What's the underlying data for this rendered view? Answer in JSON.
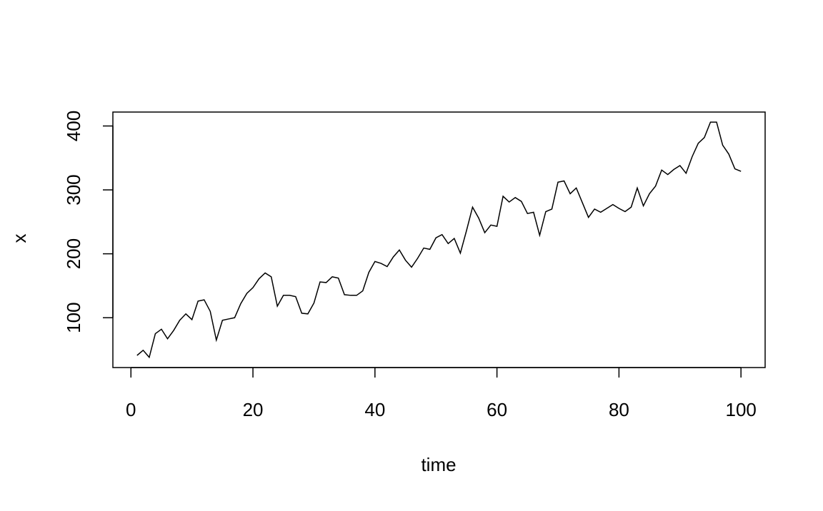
{
  "chart_data": {
    "type": "line",
    "x_label": "time",
    "y_label": "x",
    "x": [
      1,
      2,
      3,
      4,
      5,
      6,
      7,
      8,
      9,
      10,
      11,
      12,
      13,
      14,
      15,
      16,
      17,
      18,
      19,
      20,
      21,
      22,
      23,
      24,
      25,
      26,
      27,
      28,
      29,
      30,
      31,
      32,
      33,
      34,
      35,
      36,
      37,
      38,
      39,
      40,
      41,
      42,
      43,
      44,
      45,
      46,
      47,
      48,
      49,
      50,
      51,
      52,
      53,
      54,
      55,
      56,
      57,
      58,
      59,
      60,
      61,
      62,
      63,
      64,
      65,
      66,
      67,
      68,
      69,
      70,
      71,
      72,
      73,
      74,
      75,
      76,
      77,
      78,
      79,
      80,
      81,
      82,
      83,
      84,
      85,
      86,
      87,
      88,
      89,
      90,
      91,
      92,
      93,
      94,
      95,
      96,
      97,
      98,
      99,
      100
    ],
    "series": [
      {
        "color": "#000000",
        "values": [
          41,
          49,
          38,
          75,
          82,
          67,
          80,
          96,
          106,
          97,
          126,
          128,
          110,
          65,
          96,
          98,
          100,
          122,
          138,
          147,
          161,
          170,
          164,
          118,
          135,
          135,
          133,
          107,
          106,
          123,
          156,
          155,
          164,
          162,
          136,
          135,
          135,
          142,
          171,
          188,
          185,
          180,
          195,
          206,
          190,
          179,
          193,
          209,
          207,
          225,
          230,
          216,
          224,
          201,
          236,
          273,
          256,
          233,
          245,
          243,
          290,
          281,
          288,
          282,
          263,
          265,
          229,
          266,
          270,
          312,
          314,
          294,
          303,
          280,
          257,
          270,
          265,
          271,
          277,
          271,
          266,
          273,
          303,
          275,
          294,
          306,
          331,
          324,
          332,
          338,
          326,
          352,
          373,
          382,
          406,
          406,
          370,
          356,
          333,
          329
        ]
      }
    ],
    "xlim": [
      -2.96,
      103.96
    ],
    "ylim": [
      22,
      421.8
    ],
    "xticks": [
      0,
      20,
      40,
      60,
      80,
      100
    ],
    "yticks": [
      100,
      200,
      300,
      400
    ]
  }
}
